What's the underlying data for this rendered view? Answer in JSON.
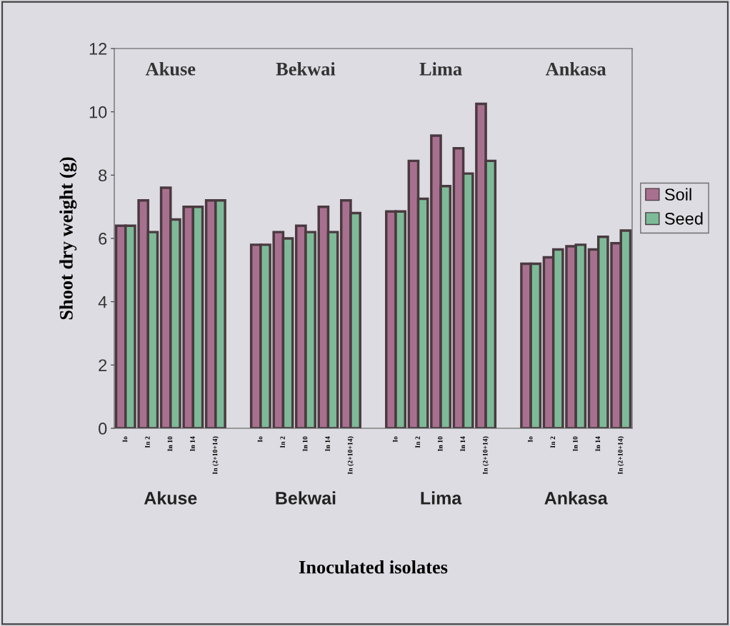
{
  "chart_data": {
    "type": "bar",
    "xlabel": "Inoculated isolates",
    "ylabel": "Shoot dry weight (g)",
    "categories": [
      "Io",
      "In 2",
      "In 10",
      "In 14",
      "In (2+10+14)",
      null,
      "Io",
      "In 2",
      "In 10",
      "In 14",
      "In (2+10+14)",
      null,
      "Io",
      "In 2",
      "In 10",
      "In 14",
      "In (2+10+14)",
      null,
      "Io",
      "In 2",
      "In 10",
      "In 14",
      "In (2+10+14)"
    ],
    "series": [
      {
        "name": "Soil",
        "color": "#a8708f",
        "values": [
          6.4,
          7.2,
          7.6,
          7.0,
          7.2,
          null,
          5.8,
          6.2,
          6.4,
          7.0,
          7.2,
          null,
          6.85,
          8.45,
          9.25,
          8.85,
          10.25,
          null,
          5.2,
          5.4,
          5.75,
          5.65,
          5.85
        ]
      },
      {
        "name": "Seed",
        "color": "#7dbb98",
        "values": [
          6.4,
          6.2,
          6.6,
          7.0,
          7.2,
          null,
          5.8,
          6.0,
          6.2,
          6.2,
          6.8,
          null,
          6.85,
          7.25,
          7.65,
          8.05,
          8.45,
          null,
          5.2,
          5.65,
          5.8,
          6.05,
          6.25
        ]
      }
    ],
    "ylim": [
      0,
      12
    ],
    "yticks": [
      0,
      2,
      4,
      6,
      8,
      10,
      12
    ],
    "grid": false,
    "legend": "right",
    "annotations": [
      "Akuse",
      "Bekwai",
      "Lima",
      "Ankasa",
      "Akuse",
      "Bekwai",
      "Lima",
      "Ankasa"
    ]
  }
}
